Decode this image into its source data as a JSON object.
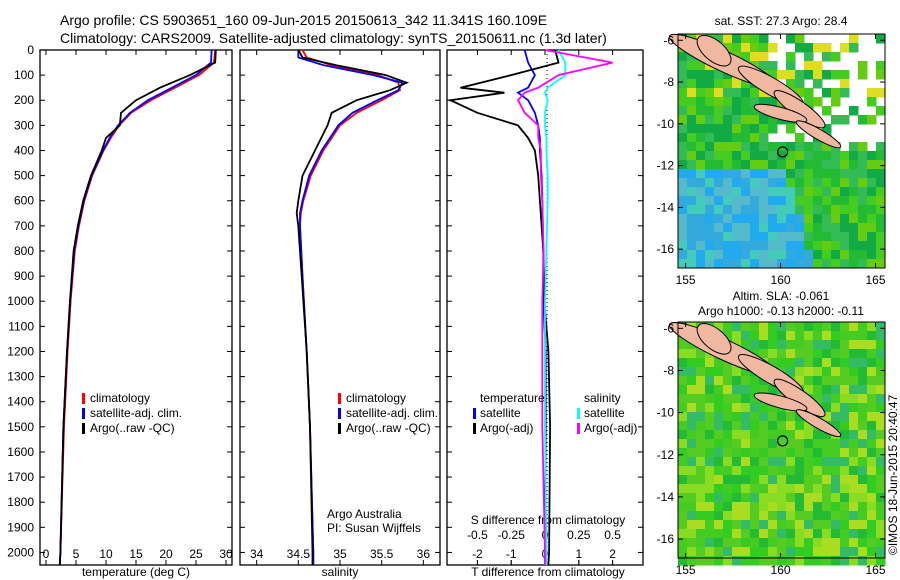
{
  "header": {
    "line1": "Argo profile: CS 5903651_160 09-Jun-2015 20150613_342 11.341S 160.109E",
    "line2": "Climatology: CARS2009. Satellite-adjusted climatology: synTS_20150611.nc (1.3d later)"
  },
  "credit": "©IMOS 18-Jun-2015 20:40:47",
  "colors": {
    "climatology": "#ff0000",
    "satellite": "#0000ff",
    "argo": "#000000",
    "sal_sat": "#00ffff",
    "sal_argo": "#ff00ff"
  },
  "chart_data": [
    {
      "type": "line",
      "id": "temperature",
      "xlabel": "temperature (deg C)",
      "ylabel": "",
      "xlim": [
        -1,
        31
      ],
      "ylim": [
        2050,
        0
      ],
      "xticks": [
        "0",
        "5",
        "10",
        "15",
        "20",
        "25",
        "30"
      ],
      "xtick_values": [
        0,
        5,
        10,
        15,
        20,
        25,
        30
      ],
      "yticks": [
        "0",
        "100",
        "200",
        "300",
        "400",
        "500",
        "600",
        "700",
        "800",
        "900",
        "1000",
        "1100",
        "1200",
        "1300",
        "1400",
        "1500",
        "1600",
        "1700",
        "1800",
        "1900",
        "2000"
      ],
      "depth": [
        0,
        50,
        100,
        150,
        200,
        250,
        300,
        350,
        400,
        500,
        600,
        700,
        800,
        1000,
        1200,
        1500,
        2000,
        2050
      ],
      "series": [
        {
          "name": "climatology",
          "color": "#ff0000",
          "values": [
            28.2,
            28,
            25.5,
            21.5,
            17.5,
            14.2,
            12.2,
            10.8,
            9.6,
            7.7,
            6.4,
            5.5,
            4.8,
            4.1,
            3.6,
            3.0,
            2.4,
            2.3
          ]
        },
        {
          "name": "satellite-adj. clim.",
          "color": "#0000ff",
          "values": [
            27.6,
            27.5,
            25,
            21,
            17,
            14,
            12,
            10.6,
            9.5,
            7.6,
            6.3,
            5.4,
            4.7,
            4.0,
            3.5,
            2.9,
            2.4,
            2.3
          ]
        },
        {
          "name": "Argo(..raw -QC)",
          "color": "#000000",
          "values": [
            28.3,
            28.2,
            24,
            19,
            15,
            12.5,
            12.3,
            10,
            9.3,
            7.5,
            6.2,
            5.3,
            4.6,
            4.0,
            3.5,
            2.9,
            2.4,
            2.3
          ]
        }
      ],
      "legend": [
        "climatology",
        "satellite-adj. clim.",
        "Argo(..raw -QC)"
      ],
      "legend_position": "lower-center"
    },
    {
      "type": "line",
      "id": "salinity",
      "xlabel": "salinity",
      "xlim": [
        33.8,
        36.2
      ],
      "ylim": [
        2050,
        0
      ],
      "xticks": [
        "34",
        "34.5",
        "35",
        "35.5",
        "36"
      ],
      "xtick_values": [
        34,
        34.5,
        35,
        35.5,
        36
      ],
      "depth": [
        0,
        30,
        60,
        100,
        130,
        160,
        200,
        250,
        300,
        400,
        500,
        600,
        650,
        700,
        900,
        1200,
        1500,
        2000,
        2050
      ],
      "series": [
        {
          "name": "climatology",
          "color": "#ff0000",
          "values": [
            34.55,
            34.6,
            34.9,
            35.45,
            35.7,
            35.72,
            35.5,
            35.2,
            35.0,
            34.8,
            34.65,
            34.56,
            34.53,
            34.52,
            34.55,
            34.6,
            34.64,
            34.68,
            34.68
          ]
        },
        {
          "name": "satellite-adj. clim.",
          "color": "#0000ff",
          "values": [
            34.5,
            34.5,
            34.8,
            35.4,
            35.75,
            35.7,
            35.45,
            35.15,
            34.98,
            34.78,
            34.63,
            34.55,
            34.52,
            34.52,
            34.55,
            34.6,
            34.64,
            34.68,
            34.68
          ]
        },
        {
          "name": "Argo(..raw -QC)",
          "color": "#000000",
          "values": [
            34.5,
            34.55,
            34.95,
            35.55,
            35.8,
            35.6,
            35.2,
            34.9,
            34.85,
            34.7,
            34.55,
            34.5,
            34.48,
            34.5,
            34.54,
            34.6,
            34.64,
            34.67,
            34.67
          ]
        }
      ],
      "legend": [
        "climatology",
        "satellite-adj. clim.",
        "Argo(..raw -QC)"
      ],
      "annotation": [
        "Argo Australia",
        "PI: Susan Wijffels"
      ]
    },
    {
      "type": "line",
      "id": "difference",
      "xlabel": "T difference from climatology",
      "x2label": "S difference from climatology",
      "xlim": [
        -2.9,
        2.9
      ],
      "x2lim": [
        -0.725,
        0.725
      ],
      "ylim": [
        2050,
        0
      ],
      "xticks": [
        "-2",
        "-1",
        "0",
        "1",
        "2"
      ],
      "xtick_values": [
        -2,
        -1,
        0,
        1,
        2
      ],
      "x2ticks": [
        "-0.5",
        "-0.25",
        "0",
        "0.25",
        "0.5"
      ],
      "x2tick_values": [
        -0.5,
        -0.25,
        0,
        0.25,
        0.5
      ],
      "depth": [
        0,
        50,
        100,
        150,
        170,
        200,
        250,
        300,
        350,
        400,
        500,
        600,
        800,
        1000,
        1200,
        1500,
        2000,
        2050
      ],
      "series": [
        {
          "name": "temperature satellite",
          "color": "#0000ff",
          "axis": "T",
          "values": [
            -0.6,
            -0.5,
            -0.3,
            -0.5,
            -0.8,
            -0.5,
            -0.3,
            -0.2,
            -0.15,
            -0.15,
            -0.1,
            -0.08,
            -0.05,
            -0.05,
            0.02,
            0.02,
            0,
            0
          ]
        },
        {
          "name": "temperature Argo(-adj)",
          "color": "#000000",
          "axis": "T",
          "values": [
            0.3,
            0.4,
            -1,
            -2.5,
            -1.2,
            -2.8,
            -2,
            -0.8,
            -0.5,
            -0.3,
            -0.2,
            -0.15,
            -0.05,
            -0.02,
            0.1,
            0.15,
            0.12,
            0.1
          ]
        },
        {
          "name": "salinity satellite",
          "color": "#00ffff",
          "axis": "S",
          "values": [
            0.1,
            0.15,
            0.15,
            0.02,
            0,
            0.02,
            0,
            0,
            0.01,
            0.01,
            0.02,
            0.02,
            0.01,
            0,
            0,
            0,
            0.01,
            0.01
          ]
        },
        {
          "name": "salinity Argo(-adj)",
          "color": "#ff00ff",
          "axis": "S",
          "values": [
            0,
            0.5,
            0.1,
            -0.05,
            -0.15,
            -0.2,
            -0.15,
            -0.05,
            -0.05,
            -0.03,
            -0.03,
            -0.02,
            -0.01,
            -0.02,
            -0.02,
            -0.02,
            0,
            0
          ]
        }
      ],
      "legend_groups": [
        {
          "title": "temperature",
          "items": [
            "satellite",
            "Argo(-adj)"
          ]
        },
        {
          "title": "salinity",
          "items": [
            "satellite",
            "Argo(-adj)"
          ]
        }
      ]
    },
    {
      "type": "heatmap",
      "id": "sst-map",
      "title": "sat. SST: 27.3  Argo: 28.4",
      "xticks": [
        "155",
        "160",
        "165"
      ],
      "yticks": [
        "-6",
        "-8",
        "-10",
        "-12",
        "-14",
        "-16"
      ],
      "xlim": [
        154.6,
        165.5
      ],
      "ylim": [
        -16.9,
        -5.7
      ],
      "marker": {
        "lon": 160.109,
        "lat": -11.341
      }
    },
    {
      "type": "heatmap",
      "id": "sla-map",
      "title": "Altim. SLA: -0.061",
      "subtitle": "Argo h1000: -0.13 h2000: -0.11",
      "xticks": [
        "155",
        "160",
        "165"
      ],
      "yticks": [
        "-6",
        "-8",
        "-10",
        "-12",
        "-14",
        "-16"
      ],
      "xlim": [
        154.6,
        165.5
      ],
      "ylim": [
        -16.9,
        -5.7
      ],
      "marker": {
        "lon": 160.109,
        "lat": -11.341
      }
    }
  ]
}
